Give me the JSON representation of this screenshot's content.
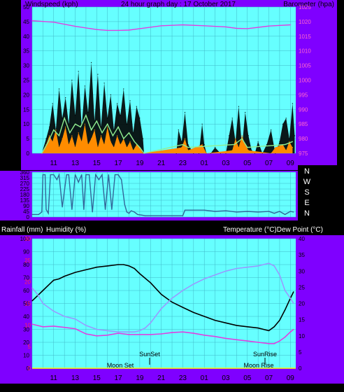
{
  "header": {
    "left": "Windspeed (kph)",
    "center": "24 hour graph day : 17 October 2017",
    "right": "Barometer (hpa)"
  },
  "labels": {
    "rainfall": "Rainfall (mm)",
    "humidity": "Humidity (%)",
    "temp_dew": "Temperature (°C)Dew Point (°C)",
    "sunset": "SunSet",
    "sunrise": "SunRise",
    "moonset": "Moon Set",
    "moonrise": "Moon Rise"
  },
  "colors": {
    "frame": "#7f00ff",
    "plot_bg": "#66ffff",
    "grid": "#40b8c8",
    "wind": "#000000",
    "gust": "#ff8c00",
    "wind_avg": "#90ee90",
    "barometer": "#e040e0",
    "direction": "#336699",
    "temperature": "#000000",
    "dewpoint": "#e040e0",
    "humidity": "#9999ff",
    "rain": "#ffff00"
  },
  "chart_data": [
    {
      "type": "line",
      "x_tick_labels": [
        "11",
        "13",
        "15",
        "17",
        "19",
        "21",
        "23",
        "01",
        "03",
        "05",
        "07",
        "09"
      ],
      "y_left_ticks": [
        "0",
        "5",
        "10",
        "15",
        "20",
        "25",
        "30",
        "35",
        "40",
        "45",
        "50"
      ],
      "y_right_ticks": [
        "975",
        "980",
        "985",
        "990",
        "995",
        "1000",
        "1005",
        "1010",
        "1015",
        "1020",
        "1025"
      ],
      "ylim_left": [
        0,
        50
      ],
      "ylim_right": [
        975,
        1025
      ],
      "x_range_hours": [
        9,
        33.5
      ],
      "series": [
        {
          "key": "barometer",
          "axis": "right",
          "x": [
            9,
            11,
            13,
            15,
            16,
            17,
            18,
            19,
            21,
            23,
            25,
            27,
            28,
            29,
            31,
            33
          ],
          "y": [
            1020.3,
            1019.8,
            1018.4,
            1017.3,
            1017.0,
            1017.0,
            1017.1,
            1017.6,
            1018.6,
            1018.9,
            1018.6,
            1018.2,
            1017.7,
            1017.6,
            1018.5,
            1018.9
          ]
        },
        {
          "key": "wind",
          "axis": "left",
          "x": [
            9.9,
            10.3,
            10.6,
            10.9,
            11.2,
            11.5,
            11.8,
            12.1,
            12.4,
            12.7,
            13.0,
            13.3,
            13.6,
            13.9,
            14.2,
            14.5,
            14.8,
            15.1,
            15.4,
            15.7,
            16.0,
            16.3,
            16.6,
            16.9,
            17.2,
            17.5,
            17.8,
            18.1,
            18.4,
            18.7,
            19.0,
            19.3,
            19.4,
            22.4,
            22.6,
            22.9,
            23.2,
            23.5,
            24.0,
            24.5,
            24.8,
            25.0,
            25.2,
            25.6,
            26.0,
            26.5,
            27.0,
            27.3,
            27.6,
            27.9,
            28.2,
            28.5,
            28.8,
            29.1,
            29.4,
            29.7,
            30.0,
            30.4,
            30.8,
            31.2,
            31.6,
            32.0,
            32.3,
            32.6,
            32.9,
            33.2,
            33.4
          ],
          "y": [
            0,
            5,
            9,
            17,
            8,
            22,
            12,
            19,
            10,
            25,
            13,
            28,
            9,
            23,
            14,
            31,
            11,
            27,
            9,
            24,
            12,
            20,
            8,
            17,
            13,
            22,
            10,
            18,
            7,
            16,
            12,
            5,
            0,
            0,
            8,
            4,
            14,
            3,
            0,
            0,
            10,
            3,
            0,
            0,
            2,
            0,
            0,
            6,
            12,
            4,
            16,
            2,
            14,
            6,
            1,
            0,
            4,
            0,
            3,
            8,
            0,
            4,
            10,
            12,
            5,
            17,
            6
          ]
        },
        {
          "key": "gust",
          "axis": "left",
          "x": [
            9.9,
            10.3,
            10.6,
            10.9,
            11.2,
            11.5,
            11.8,
            12.1,
            12.4,
            12.7,
            13.0,
            13.3,
            13.6,
            13.9,
            14.2,
            14.5,
            14.8,
            15.1,
            15.4,
            15.7,
            16.0,
            16.3,
            16.6,
            16.9,
            17.2,
            17.5,
            17.8,
            18.1,
            18.4,
            18.7,
            19.0,
            19.3,
            22.9,
            23.2,
            23.5,
            24.8,
            25.2,
            27.6,
            27.9,
            28.2,
            28.5,
            28.8,
            29.1,
            31.2,
            31.6,
            32.3,
            32.6,
            32.9,
            33.2
          ],
          "y": [
            0,
            3,
            6,
            4,
            8,
            2,
            5,
            9,
            3,
            6,
            2,
            7,
            4,
            10,
            3,
            5,
            8,
            2,
            6,
            3,
            9,
            4,
            2,
            6,
            3,
            5,
            2,
            4,
            1,
            3,
            2,
            0,
            2,
            5,
            1,
            3,
            0,
            1,
            5,
            2,
            6,
            3,
            1,
            0,
            2,
            3,
            1,
            4,
            2
          ]
        },
        {
          "key": "wind_avg",
          "axis": "left",
          "x": [
            9.9,
            10.5,
            11.0,
            11.5,
            12.0,
            12.5,
            13.0,
            13.5,
            14.0,
            14.5,
            15.0,
            15.5,
            16.0,
            16.5,
            17.0,
            17.5,
            18.0,
            18.5,
            19.0,
            19.4,
            23.0,
            23.5,
            27.8,
            28.5,
            29.0,
            32.5,
            33.2
          ],
          "y": [
            0,
            4,
            8,
            6,
            12,
            7,
            10,
            9,
            13,
            8,
            11,
            7,
            10,
            6,
            9,
            5,
            7,
            4,
            2,
            0,
            3,
            2,
            3,
            5,
            2,
            3,
            4
          ]
        }
      ]
    },
    {
      "type": "line",
      "x_tick_labels": [],
      "y_left_ticks": [
        "0",
        "45",
        "90",
        "135",
        "180",
        "225",
        "270",
        "315",
        "360"
      ],
      "y_right_ticks": [
        "N",
        "W",
        "S",
        "E",
        "N"
      ],
      "ylim_left": [
        0,
        360
      ],
      "x_range_hours": [
        9,
        33.5
      ],
      "series": [
        {
          "key": "direction",
          "axis": "left",
          "x": [
            9.0,
            9.6,
            9.9,
            10.0,
            10.2,
            10.3,
            10.5,
            10.7,
            11.0,
            11.3,
            11.5,
            11.8,
            12.2,
            12.4,
            12.7,
            13.0,
            13.3,
            13.6,
            13.8,
            14.0,
            14.3,
            14.6,
            14.9,
            15.2,
            15.5,
            15.8,
            16.1,
            16.4,
            16.7,
            17.0,
            17.3,
            17.6,
            17.8,
            18.0,
            18.2,
            18.5,
            18.8,
            19.2,
            19.5,
            23.0,
            23.2,
            25.0,
            26.0,
            27.0,
            28.0,
            29.0,
            30.0,
            31.0,
            31.5,
            32.0,
            32.5,
            33.0,
            33.3
          ],
          "y": [
            20,
            20,
            40,
            340,
            340,
            60,
            30,
            340,
            340,
            300,
            340,
            80,
            340,
            340,
            60,
            340,
            280,
            340,
            60,
            340,
            340,
            40,
            340,
            300,
            340,
            60,
            340,
            60,
            340,
            340,
            300,
            100,
            40,
            30,
            50,
            40,
            20,
            15,
            10,
            10,
            55,
            55,
            45,
            50,
            40,
            45,
            40,
            45,
            30,
            45,
            20,
            45,
            40
          ]
        }
      ]
    },
    {
      "type": "line",
      "x_tick_labels": [
        "11",
        "13",
        "15",
        "17",
        "19",
        "21",
        "23",
        "01",
        "03",
        "05",
        "07",
        "09"
      ],
      "y_left_ticks": [
        "0",
        "10",
        "20",
        "30",
        "40",
        "50",
        "60",
        "70",
        "80",
        "90",
        "100"
      ],
      "y_left_rain_ticks": [
        "0",
        "5",
        "10",
        "15",
        "20",
        "25",
        "30"
      ],
      "y_right_ticks": [
        "0",
        "5",
        "10",
        "15",
        "20",
        "25",
        "30",
        "35",
        "40"
      ],
      "ylim_left": [
        0,
        100
      ],
      "ylim_right": [
        0,
        40
      ],
      "x_range_hours": [
        9,
        33.5
      ],
      "series": [
        {
          "key": "temperature",
          "axis": "right",
          "x": [
            9.0,
            9.5,
            10.0,
            10.5,
            11.0,
            11.5,
            12.0,
            13.0,
            14.0,
            15.0,
            16.0,
            17.0,
            17.5,
            18.0,
            18.5,
            19.0,
            20.0,
            21.0,
            22.0,
            23.0,
            24.0,
            25.0,
            26.0,
            27.0,
            28.0,
            29.0,
            30.0,
            30.5,
            31.0,
            31.5,
            32.0,
            32.5,
            33.0,
            33.3
          ],
          "y": [
            20.8,
            22.4,
            24.0,
            25.6,
            27.2,
            27.6,
            28.4,
            29.6,
            30.4,
            31.2,
            31.6,
            32.0,
            32.0,
            31.6,
            30.8,
            29.2,
            26.4,
            22.8,
            20.4,
            18.8,
            17.2,
            16.0,
            14.8,
            14.0,
            13.2,
            12.8,
            12.4,
            12.0,
            11.6,
            12.8,
            14.8,
            18.0,
            21.6,
            23.6
          ]
        },
        {
          "key": "dewpoint",
          "axis": "right",
          "x": [
            9.0,
            10.0,
            11.0,
            12.0,
            13.0,
            14.0,
            15.0,
            16.0,
            17.0,
            18.0,
            19.0,
            20.0,
            21.0,
            22.0,
            23.0,
            24.0,
            25.0,
            26.0,
            27.0,
            28.0,
            29.0,
            30.0,
            31.0,
            31.5,
            32.0,
            32.5,
            33.0,
            33.3
          ],
          "y": [
            13.6,
            12.8,
            13.0,
            12.6,
            12.2,
            10.6,
            10.0,
            10.2,
            10.8,
            10.4,
            10.4,
            10.4,
            10.6,
            11.0,
            11.2,
            10.8,
            10.2,
            9.8,
            9.2,
            8.8,
            8.4,
            8.0,
            7.6,
            7.6,
            8.4,
            9.6,
            11.2,
            12.0
          ]
        },
        {
          "key": "humidity",
          "axis": "left",
          "x": [
            9.0,
            9.5,
            10.0,
            11.0,
            12.0,
            13.0,
            14.0,
            15.0,
            16.0,
            17.0,
            18.0,
            18.5,
            19.0,
            19.5,
            20.0,
            21.0,
            22.0,
            23.0,
            24.0,
            25.0,
            26.0,
            27.0,
            28.0,
            29.0,
            30.0,
            30.5,
            31.0,
            31.5,
            32.0,
            32.5,
            33.0,
            33.3
          ],
          "y": [
            62,
            57,
            50,
            44,
            40,
            38,
            33,
            30,
            29,
            28,
            28,
            28,
            29,
            31,
            35,
            46,
            54,
            60,
            65,
            69,
            72,
            75,
            77,
            78,
            79,
            80,
            81,
            79,
            72,
            60,
            54,
            50
          ]
        },
        {
          "key": "rain",
          "axis": "left",
          "x": [
            9.0,
            33.5
          ],
          "y": [
            0,
            0
          ]
        }
      ]
    }
  ]
}
